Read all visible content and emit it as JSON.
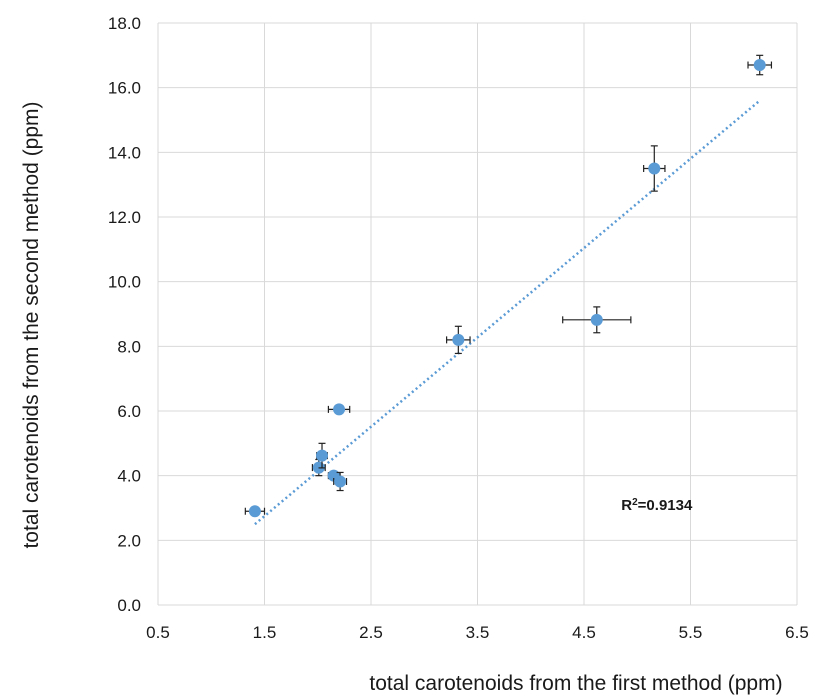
{
  "chart_data": {
    "type": "scatter",
    "xlabel": "total carotenoids from the first method (ppm)",
    "ylabel": "total carotenoids from the second method (ppm)",
    "xlim": [
      0.5,
      6.5
    ],
    "ylim": [
      0.0,
      18.0
    ],
    "x_ticks": [
      "0.5",
      "1.5",
      "2.5",
      "3.5",
      "4.5",
      "5.5",
      "6.5"
    ],
    "y_ticks": [
      "0.0",
      "2.0",
      "4.0",
      "6.0",
      "8.0",
      "10.0",
      "12.0",
      "14.0",
      "16.0",
      "18.0"
    ],
    "grid": true,
    "marker_color": "#5b9bd5",
    "points": [
      {
        "x": 1.41,
        "y": 2.9,
        "xerr": 0.09,
        "yerr": 0.12
      },
      {
        "x": 2.01,
        "y": 4.25,
        "xerr": 0.06,
        "yerr": 0.25
      },
      {
        "x": 2.04,
        "y": 4.62,
        "xerr": 0.05,
        "yerr": 0.38
      },
      {
        "x": 2.15,
        "y": 4.0,
        "xerr": 0.05,
        "yerr": 0.1
      },
      {
        "x": 2.21,
        "y": 3.82,
        "xerr": 0.06,
        "yerr": 0.28
      },
      {
        "x": 2.2,
        "y": 6.05,
        "xerr": 0.1,
        "yerr": 0.08
      },
      {
        "x": 3.32,
        "y": 8.2,
        "xerr": 0.11,
        "yerr": 0.42
      },
      {
        "x": 4.62,
        "y": 8.82,
        "xerr": 0.32,
        "yerr": 0.4
      },
      {
        "x": 5.16,
        "y": 13.5,
        "xerr": 0.1,
        "yerr": 0.7
      },
      {
        "x": 6.15,
        "y": 16.7,
        "xerr": 0.11,
        "yerr": 0.3
      }
    ],
    "trendline": {
      "x": [
        1.41,
        6.15
      ],
      "y": [
        2.5,
        15.6
      ]
    },
    "annotation": {
      "prefix": "R",
      "sup": "2",
      "suffix": "=0.9134",
      "x": 4.85,
      "y": 3.1
    }
  }
}
